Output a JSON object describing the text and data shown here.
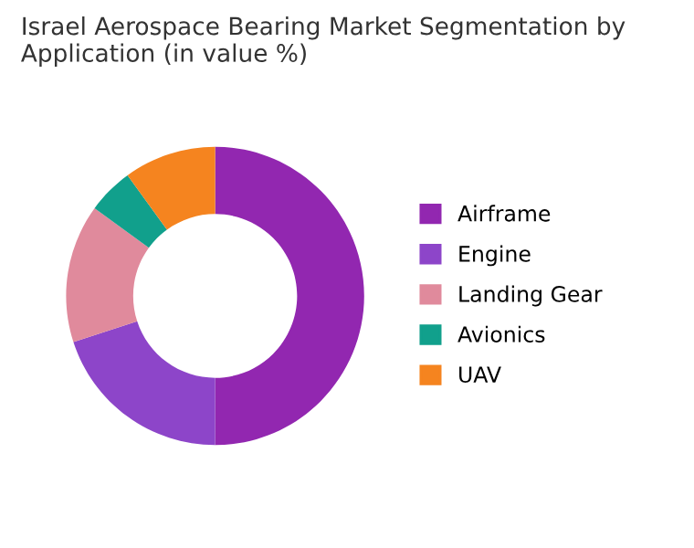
{
  "chart_data": {
    "type": "donut",
    "title": "Israel Aerospace Bearing Market Segmentation by Application (in value %)",
    "categories": [
      "Airframe",
      "Engine",
      "Landing Gear",
      "Avionics",
      "UAV"
    ],
    "values": [
      50,
      20,
      15,
      5,
      10
    ],
    "colors": [
      "#9227b0",
      "#8d45c9",
      "#e08a9c",
      "#11a08c",
      "#f5841f"
    ],
    "legend": "right"
  }
}
